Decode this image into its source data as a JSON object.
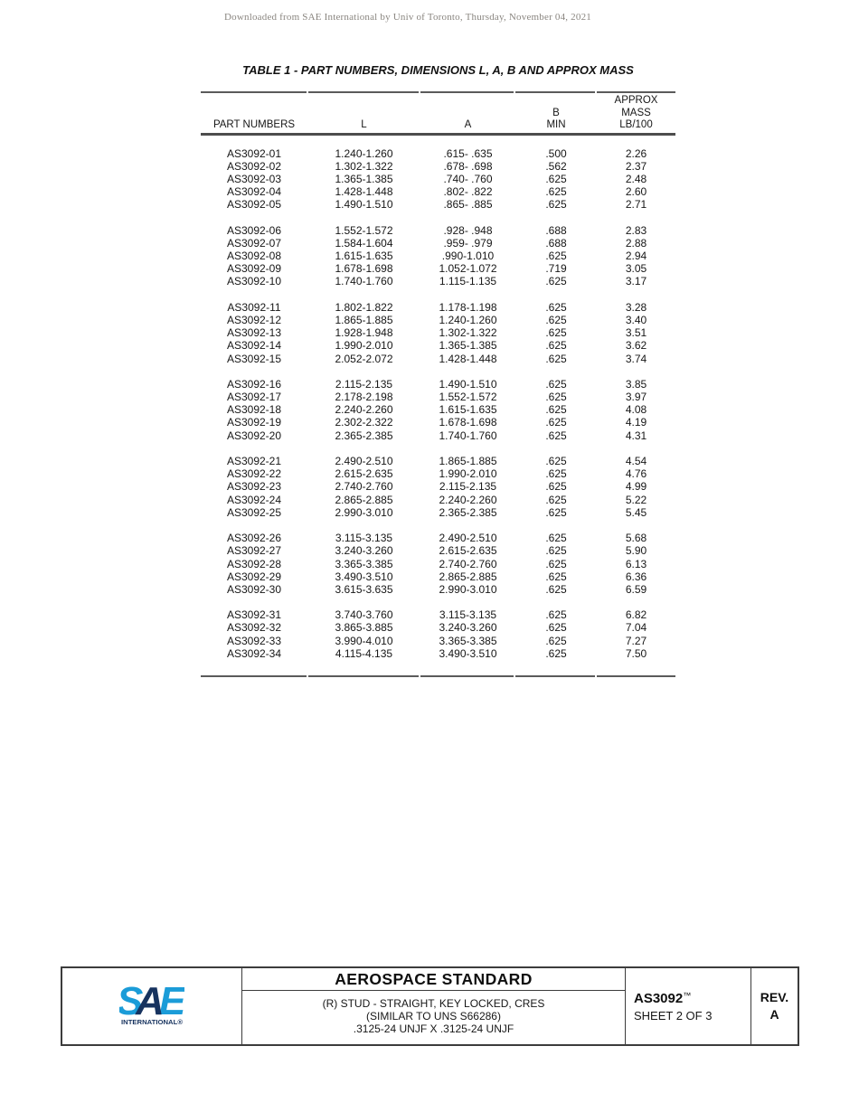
{
  "watermark": "Downloaded from SAE International by Univ of Toronto, Thursday, November 04, 2021",
  "table": {
    "title": "TABLE 1 - PART NUMBERS, DIMENSIONS L, A, B AND APPROX MASS",
    "columns": [
      "PART NUMBERS",
      "L",
      "A",
      "B\nMIN",
      "APPROX\nMASS\nLB/100"
    ],
    "groups": [
      [
        [
          "AS3092-01",
          "1.240-1.260",
          ".615- .635",
          ".500",
          "2.26"
        ],
        [
          "AS3092-02",
          "1.302-1.322",
          ".678- .698",
          ".562",
          "2.37"
        ],
        [
          "AS3092-03",
          "1.365-1.385",
          ".740- .760",
          ".625",
          "2.48"
        ],
        [
          "AS3092-04",
          "1.428-1.448",
          ".802- .822",
          ".625",
          "2.60"
        ],
        [
          "AS3092-05",
          "1.490-1.510",
          ".865- .885",
          ".625",
          "2.71"
        ]
      ],
      [
        [
          "AS3092-06",
          "1.552-1.572",
          ".928- .948",
          ".688",
          "2.83"
        ],
        [
          "AS3092-07",
          "1.584-1.604",
          ".959- .979",
          ".688",
          "2.88"
        ],
        [
          "AS3092-08",
          "1.615-1.635",
          ".990-1.010",
          ".625",
          "2.94"
        ],
        [
          "AS3092-09",
          "1.678-1.698",
          "1.052-1.072",
          ".719",
          "3.05"
        ],
        [
          "AS3092-10",
          "1.740-1.760",
          "1.115-1.135",
          ".625",
          "3.17"
        ]
      ],
      [
        [
          "AS3092-11",
          "1.802-1.822",
          "1.178-1.198",
          ".625",
          "3.28"
        ],
        [
          "AS3092-12",
          "1.865-1.885",
          "1.240-1.260",
          ".625",
          "3.40"
        ],
        [
          "AS3092-13",
          "1.928-1.948",
          "1.302-1.322",
          ".625",
          "3.51"
        ],
        [
          "AS3092-14",
          "1.990-2.010",
          "1.365-1.385",
          ".625",
          "3.62"
        ],
        [
          "AS3092-15",
          "2.052-2.072",
          "1.428-1.448",
          ".625",
          "3.74"
        ]
      ],
      [
        [
          "AS3092-16",
          "2.115-2.135",
          "1.490-1.510",
          ".625",
          "3.85"
        ],
        [
          "AS3092-17",
          "2.178-2.198",
          "1.552-1.572",
          ".625",
          "3.97"
        ],
        [
          "AS3092-18",
          "2.240-2.260",
          "1.615-1.635",
          ".625",
          "4.08"
        ],
        [
          "AS3092-19",
          "2.302-2.322",
          "1.678-1.698",
          ".625",
          "4.19"
        ],
        [
          "AS3092-20",
          "2.365-2.385",
          "1.740-1.760",
          ".625",
          "4.31"
        ]
      ],
      [
        [
          "AS3092-21",
          "2.490-2.510",
          "1.865-1.885",
          ".625",
          "4.54"
        ],
        [
          "AS3092-22",
          "2.615-2.635",
          "1.990-2.010",
          ".625",
          "4.76"
        ],
        [
          "AS3092-23",
          "2.740-2.760",
          "2.115-2.135",
          ".625",
          "4.99"
        ],
        [
          "AS3092-24",
          "2.865-2.885",
          "2.240-2.260",
          ".625",
          "5.22"
        ],
        [
          "AS3092-25",
          "2.990-3.010",
          "2.365-2.385",
          ".625",
          "5.45"
        ]
      ],
      [
        [
          "AS3092-26",
          "3.115-3.135",
          "2.490-2.510",
          ".625",
          "5.68"
        ],
        [
          "AS3092-27",
          "3.240-3.260",
          "2.615-2.635",
          ".625",
          "5.90"
        ],
        [
          "AS3092-28",
          "3.365-3.385",
          "2.740-2.760",
          ".625",
          "6.13"
        ],
        [
          "AS3092-29",
          "3.490-3.510",
          "2.865-2.885",
          ".625",
          "6.36"
        ],
        [
          "AS3092-30",
          "3.615-3.635",
          "2.990-3.010",
          ".625",
          "6.59"
        ]
      ],
      [
        [
          "AS3092-31",
          "3.740-3.760",
          "3.115-3.135",
          ".625",
          "6.82"
        ],
        [
          "AS3092-32",
          "3.865-3.885",
          "3.240-3.260",
          ".625",
          "7.04"
        ],
        [
          "AS3092-33",
          "3.990-4.010",
          "3.365-3.385",
          ".625",
          "7.27"
        ],
        [
          "AS3092-34",
          "4.115-4.135",
          "3.490-3.510",
          ".625",
          "7.50"
        ]
      ]
    ]
  },
  "footer": {
    "logo": {
      "s": "S",
      "a": "A",
      "e": "E",
      "subtext": "INTERNATIONAL®"
    },
    "doc_type": "AEROSPACE STANDARD",
    "title_lines": [
      "(R) STUD - STRAIGHT, KEY LOCKED, CRES",
      "(SIMILAR TO UNS S66286)",
      ".3125-24 UNJF X .3125-24 UNJF"
    ],
    "doc_number": "AS3092",
    "trademark": "™",
    "sheet": "SHEET 2 OF 3",
    "rev_label": "REV.",
    "rev_value": "A",
    "colors": {
      "sae_light_blue": "#1B9CD8",
      "sae_dark_blue": "#17335F"
    }
  }
}
